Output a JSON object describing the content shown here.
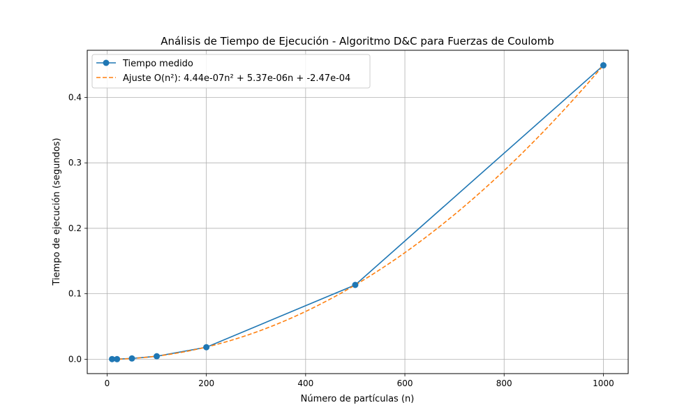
{
  "chart_data": {
    "type": "line",
    "title": "Análisis de Tiempo de Ejecución - Algoritmo D&C para Fuerzas de Coulomb",
    "xlabel": "Número de partículas (n)",
    "ylabel": "Tiempo de ejecución (segundos)",
    "xlim": [
      -40,
      1050
    ],
    "ylim": [
      -0.022,
      0.472
    ],
    "x_ticks": [
      0,
      200,
      400,
      600,
      800,
      1000
    ],
    "x_tick_labels": [
      "0",
      "200",
      "400",
      "600",
      "800",
      "1000"
    ],
    "y_ticks": [
      0.0,
      0.1,
      0.2,
      0.3,
      0.4
    ],
    "y_tick_labels": [
      "0.0",
      "0.1",
      "0.2",
      "0.3",
      "0.4"
    ],
    "grid": true,
    "legend_position": "upper-left",
    "series": [
      {
        "name": "Tiempo medido",
        "style": "solid-line-circle-markers",
        "color": "#1f77b4",
        "x": [
          10,
          20,
          50,
          100,
          200,
          500,
          1000
        ],
        "y": [
          0.0002,
          0.0001,
          0.0012,
          0.0045,
          0.0183,
          0.1135,
          0.449
        ]
      },
      {
        "name": "Ajuste O(n²): 4.44e-07n² + 5.37e-06n + -2.47e-04",
        "style": "dashed-line",
        "color": "#ff7f0e",
        "fit": {
          "a": 4.44e-07,
          "b": 5.37e-06,
          "c": -0.000247
        },
        "x_range": [
          10,
          1000
        ]
      }
    ]
  }
}
